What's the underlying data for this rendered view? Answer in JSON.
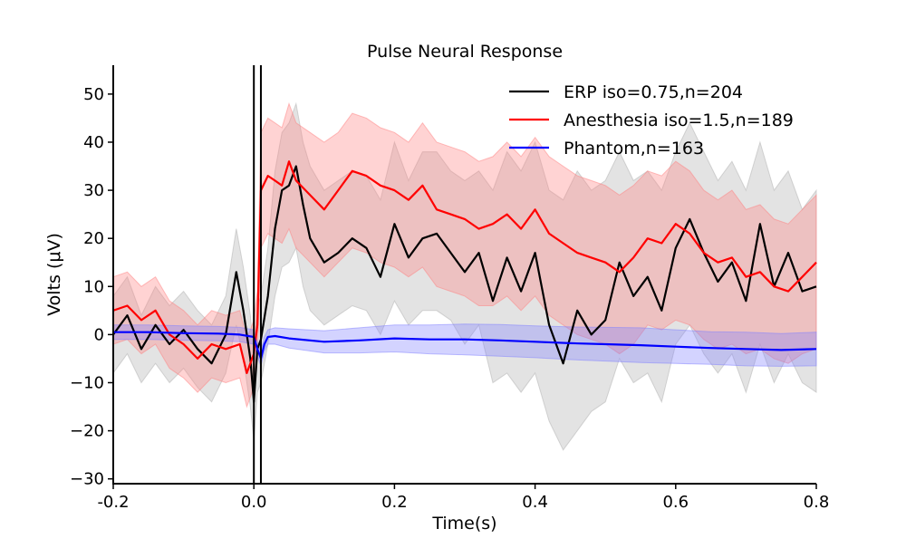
{
  "chart_data": {
    "type": "line",
    "title": "Pulse Neural Response",
    "xlabel": "Time(s)",
    "ylabel": "Volts (μV)",
    "xlim": [
      -0.2,
      0.8
    ],
    "ylim": [
      -31,
      56
    ],
    "x_ticks": [
      {
        "value": -0.2,
        "label": "-0.2"
      },
      {
        "value": 0.0,
        "label": "0.0"
      },
      {
        "value": 0.2,
        "label": "0.2"
      },
      {
        "value": 0.4,
        "label": "0.4"
      },
      {
        "value": 0.6,
        "label": "0.6"
      },
      {
        "value": 0.8,
        "label": "0.8"
      }
    ],
    "y_ticks": [
      {
        "value": -30,
        "label": "−30"
      },
      {
        "value": -20,
        "label": "−20"
      },
      {
        "value": -10,
        "label": "−10"
      },
      {
        "value": 0,
        "label": "0"
      },
      {
        "value": 10,
        "label": "10"
      },
      {
        "value": 20,
        "label": "20"
      },
      {
        "value": 30,
        "label": "30"
      },
      {
        "value": 40,
        "label": "40"
      },
      {
        "value": 50,
        "label": "50"
      }
    ],
    "vertical_markers": [
      0.0,
      0.01
    ],
    "grid": false,
    "legend_position": "top-right",
    "series": [
      {
        "name": "ERP iso=0.75,n=204",
        "color": "#000000",
        "band_color": "#b0b0b0",
        "x": [
          -0.2,
          -0.18,
          -0.16,
          -0.14,
          -0.12,
          -0.1,
          -0.08,
          -0.06,
          -0.04,
          -0.025,
          -0.015,
          -0.005,
          0.0,
          0.005,
          0.01,
          0.02,
          0.03,
          0.04,
          0.05,
          0.06,
          0.07,
          0.08,
          0.1,
          0.12,
          0.14,
          0.16,
          0.18,
          0.2,
          0.22,
          0.24,
          0.26,
          0.28,
          0.3,
          0.32,
          0.34,
          0.36,
          0.38,
          0.4,
          0.42,
          0.44,
          0.46,
          0.48,
          0.5,
          0.52,
          0.54,
          0.56,
          0.58,
          0.6,
          0.62,
          0.64,
          0.66,
          0.68,
          0.7,
          0.72,
          0.74,
          0.76,
          0.78,
          0.8
        ],
        "y": [
          0,
          4,
          -3,
          2,
          -2,
          1,
          -3,
          -6,
          0,
          13,
          5,
          -5,
          -14,
          -3,
          -1,
          8,
          22,
          30,
          31,
          35,
          27,
          20,
          15,
          17,
          20,
          18,
          12,
          23,
          16,
          20,
          21,
          17,
          13,
          17,
          7,
          16,
          9,
          17,
          2,
          -6,
          5,
          0,
          3,
          15,
          8,
          12,
          5,
          18,
          24,
          17,
          11,
          15,
          7,
          23,
          10,
          17,
          9,
          10
        ],
        "band_lower": [
          -8,
          -4,
          -10,
          -6,
          -10,
          -7,
          -11,
          -14,
          -8,
          2,
          -5,
          -15,
          -22,
          -12,
          -10,
          -2,
          8,
          14,
          15,
          18,
          10,
          5,
          2,
          4,
          6,
          5,
          0,
          7,
          2,
          5,
          5,
          3,
          -2,
          2,
          -10,
          -8,
          -12,
          -8,
          -18,
          -24,
          -20,
          -16,
          -14,
          -5,
          -10,
          -8,
          -14,
          -2,
          2,
          -4,
          -8,
          -4,
          -12,
          -2,
          -10,
          -4,
          -10,
          -12
        ],
        "band_upper": [
          8,
          12,
          4,
          10,
          6,
          9,
          5,
          2,
          8,
          22,
          14,
          4,
          -4,
          6,
          8,
          18,
          34,
          42,
          44,
          48,
          40,
          35,
          30,
          32,
          34,
          33,
          28,
          40,
          32,
          38,
          38,
          34,
          32,
          34,
          30,
          38,
          34,
          40,
          30,
          28,
          34,
          30,
          32,
          38,
          32,
          34,
          30,
          38,
          44,
          38,
          32,
          36,
          30,
          40,
          30,
          34,
          26,
          30
        ]
      },
      {
        "name": "Anesthesia iso=1.5,n=189",
        "color": "#ff0000",
        "band_color": "#ff8080",
        "x": [
          -0.2,
          -0.18,
          -0.16,
          -0.14,
          -0.12,
          -0.1,
          -0.08,
          -0.06,
          -0.04,
          -0.02,
          -0.01,
          0.0,
          0.005,
          0.01,
          0.02,
          0.03,
          0.04,
          0.05,
          0.06,
          0.08,
          0.1,
          0.12,
          0.14,
          0.16,
          0.18,
          0.2,
          0.22,
          0.24,
          0.26,
          0.28,
          0.3,
          0.32,
          0.34,
          0.36,
          0.38,
          0.4,
          0.42,
          0.44,
          0.46,
          0.48,
          0.5,
          0.52,
          0.54,
          0.56,
          0.58,
          0.6,
          0.62,
          0.64,
          0.66,
          0.68,
          0.7,
          0.72,
          0.74,
          0.76,
          0.78,
          0.8
        ],
        "y": [
          5,
          6,
          3,
          5,
          0,
          -2,
          -5,
          -2,
          -3,
          -2,
          -8,
          -4,
          2,
          30,
          33,
          32,
          31,
          36,
          32,
          29,
          26,
          30,
          34,
          33,
          31,
          30,
          28,
          31,
          26,
          25,
          24,
          22,
          23,
          25,
          22,
          26,
          21,
          19,
          17,
          16,
          15,
          13,
          16,
          20,
          19,
          23,
          21,
          17,
          15,
          16,
          12,
          13,
          10,
          9,
          12,
          15
        ],
        "band_lower": [
          -2,
          -1,
          -4,
          -2,
          -7,
          -9,
          -12,
          -9,
          -10,
          -9,
          -15,
          -11,
          -5,
          18,
          21,
          20,
          19,
          22,
          18,
          15,
          12,
          15,
          18,
          17,
          15,
          14,
          12,
          14,
          10,
          9,
          8,
          6,
          6,
          8,
          5,
          8,
          4,
          2,
          0,
          -1,
          -2,
          -4,
          -2,
          2,
          1,
          3,
          2,
          -1,
          -3,
          -2,
          -4,
          -3,
          -5,
          -6,
          -4,
          -3
        ],
        "band_upper": [
          12,
          13,
          10,
          12,
          7,
          5,
          2,
          5,
          4,
          5,
          -1,
          3,
          9,
          42,
          45,
          44,
          43,
          48,
          44,
          42,
          40,
          42,
          46,
          45,
          43,
          42,
          40,
          44,
          40,
          39,
          38,
          36,
          37,
          40,
          37,
          41,
          37,
          35,
          33,
          32,
          31,
          29,
          31,
          34,
          33,
          36,
          34,
          30,
          28,
          30,
          26,
          27,
          24,
          23,
          26,
          29
        ]
      },
      {
        "name": "Phantom,n=163",
        "color": "#0000ff",
        "band_color": "#8080ff",
        "x": [
          -0.2,
          -0.15,
          -0.1,
          -0.05,
          -0.02,
          0.0,
          0.005,
          0.01,
          0.015,
          0.02,
          0.03,
          0.05,
          0.1,
          0.15,
          0.2,
          0.25,
          0.3,
          0.35,
          0.4,
          0.45,
          0.5,
          0.55,
          0.6,
          0.65,
          0.7,
          0.75,
          0.8
        ],
        "y": [
          0.5,
          0.5,
          0.3,
          0.2,
          0,
          -0.5,
          -3,
          -5,
          -2,
          -0.5,
          -0.3,
          -0.8,
          -1.5,
          -1.2,
          -0.8,
          -1,
          -1,
          -1.2,
          -1.5,
          -1.8,
          -2,
          -2.2,
          -2.5,
          -2.8,
          -3,
          -3.2,
          -3
        ],
        "band_lower": [
          -1,
          -1,
          -1.2,
          -1.3,
          -1.5,
          -2,
          -4.5,
          -6.5,
          -3.5,
          -2,
          -2,
          -2.8,
          -3.8,
          -3.8,
          -3.6,
          -4,
          -4.2,
          -4.5,
          -4.8,
          -5.2,
          -5.5,
          -5.8,
          -6,
          -6.2,
          -6.5,
          -6.6,
          -6.5
        ],
        "band_upper": [
          2,
          2,
          1.8,
          1.7,
          1.5,
          1,
          -1.5,
          -3.5,
          -0.5,
          1,
          1.4,
          1.2,
          0.8,
          1.4,
          2,
          2,
          2.2,
          2.1,
          1.8,
          1.6,
          1.5,
          1.4,
          1,
          0.6,
          0.5,
          0.2,
          0.5
        ]
      }
    ]
  }
}
